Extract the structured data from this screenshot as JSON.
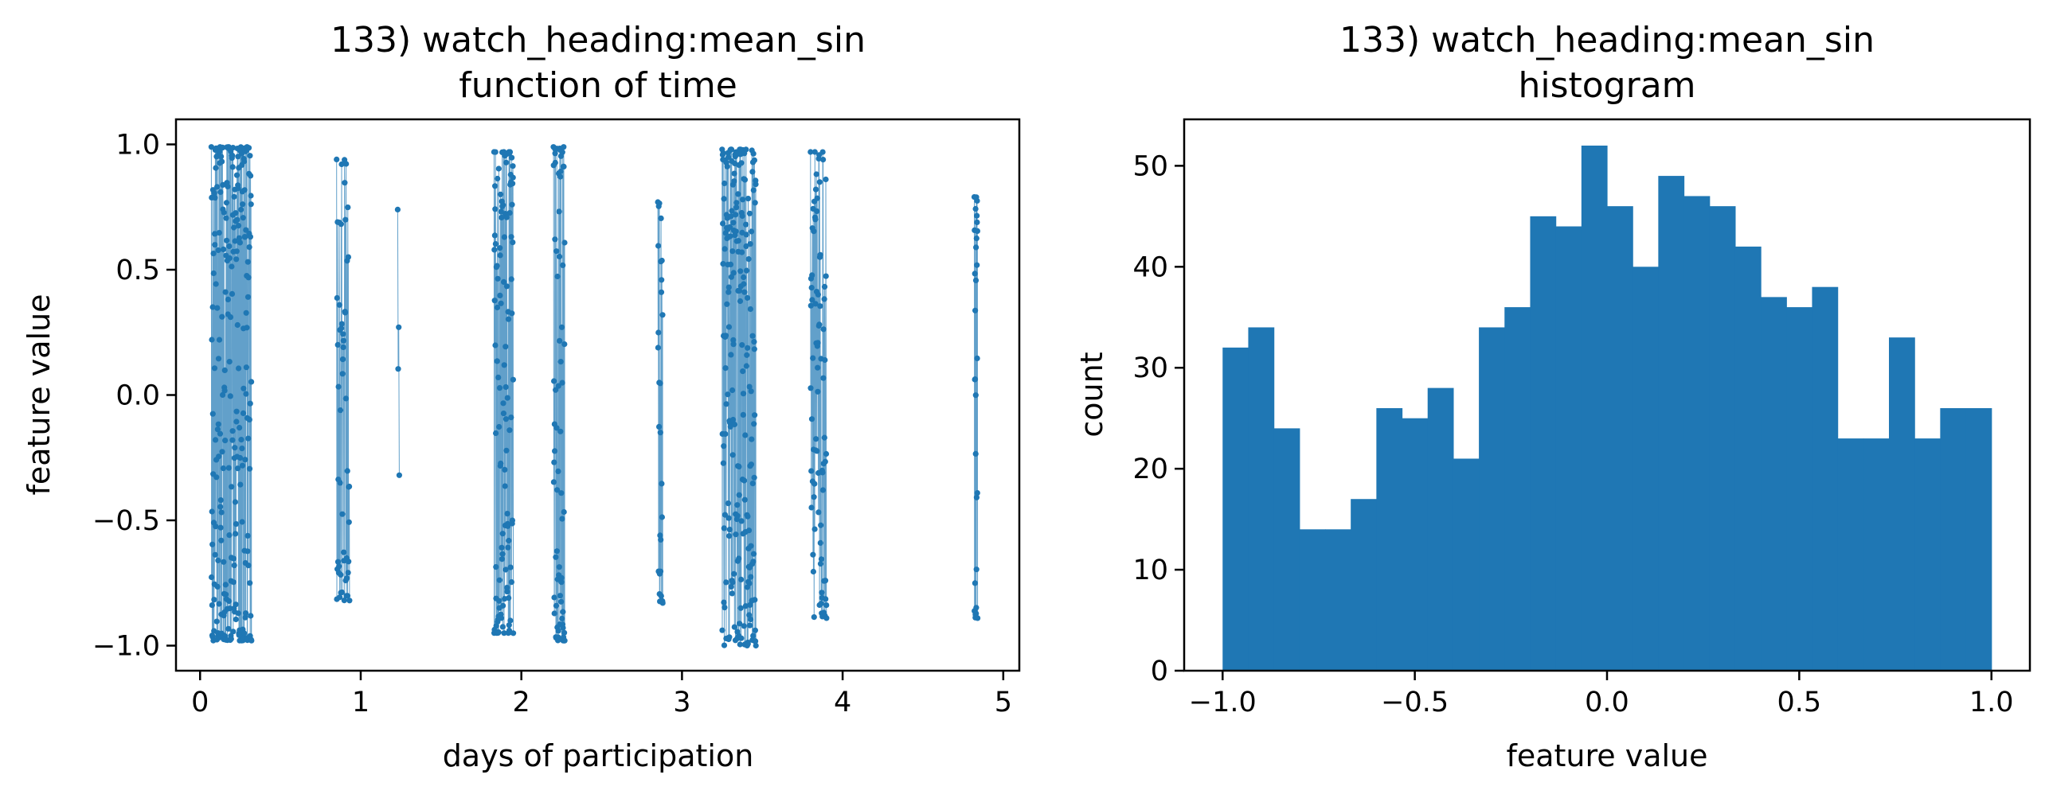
{
  "chart_data": [
    {
      "type": "line",
      "title_line1": "133) watch_heading:mean_sin",
      "title_line2": "function of time",
      "xlabel": "days of participation",
      "ylabel": "feature value",
      "xlim": [
        -0.15,
        5.1
      ],
      "ylim": [
        -1.1,
        1.1
      ],
      "xticks": [
        0,
        1,
        2,
        3,
        4,
        5
      ],
      "xtick_labels": [
        "0",
        "1",
        "2",
        "3",
        "4",
        "5"
      ],
      "yticks": [
        -1.0,
        -0.5,
        0.0,
        0.5,
        1.0
      ],
      "ytick_labels": [
        "−1.0",
        "−0.5",
        "0.0",
        "0.5",
        "1.0"
      ],
      "color": "#1f77b4",
      "markers": true,
      "grid": false,
      "clusters": [
        {
          "start": 0.07,
          "end": 0.32,
          "count": 260,
          "min": -0.98,
          "max": 0.99
        },
        {
          "start": 0.85,
          "end": 0.93,
          "count": 55,
          "min": -0.82,
          "max": 0.94
        },
        {
          "start": 1.23,
          "end": 1.24,
          "count": 4,
          "min": -0.32,
          "max": 0.74
        },
        {
          "start": 1.83,
          "end": 1.95,
          "count": 120,
          "min": -0.95,
          "max": 0.97
        },
        {
          "start": 2.2,
          "end": 2.27,
          "count": 75,
          "min": -0.98,
          "max": 0.99
        },
        {
          "start": 2.85,
          "end": 2.88,
          "count": 30,
          "min": -0.83,
          "max": 0.77
        },
        {
          "start": 3.25,
          "end": 3.46,
          "count": 220,
          "min": -1.0,
          "max": 0.98
        },
        {
          "start": 3.8,
          "end": 3.9,
          "count": 85,
          "min": -0.89,
          "max": 0.97
        },
        {
          "start": 4.82,
          "end": 4.84,
          "count": 30,
          "min": -0.89,
          "max": 0.79
        }
      ]
    },
    {
      "type": "bar",
      "title_line1": "133) watch_heading:mean_sin",
      "title_line2": "histogram",
      "xlabel": "feature value",
      "ylabel": "count",
      "xlim": [
        -1.1,
        1.1
      ],
      "ylim": [
        0,
        54.6
      ],
      "xticks": [
        -1.0,
        -0.5,
        0.0,
        0.5,
        1.0
      ],
      "xtick_labels": [
        "−1.0",
        "−0.5",
        "0.0",
        "0.5",
        "1.0"
      ],
      "yticks": [
        0,
        10,
        20,
        30,
        40,
        50
      ],
      "ytick_labels": [
        "0",
        "10",
        "20",
        "30",
        "40",
        "50"
      ],
      "color": "#1f77b4",
      "grid": false,
      "bin_range": [
        -1.0,
        1.0
      ],
      "counts": [
        32,
        34,
        24,
        14,
        14,
        17,
        26,
        25,
        28,
        21,
        34,
        36,
        45,
        44,
        52,
        46,
        40,
        49,
        47,
        46,
        42,
        37,
        36,
        38,
        23,
        23,
        33,
        23,
        26,
        26
      ]
    }
  ]
}
